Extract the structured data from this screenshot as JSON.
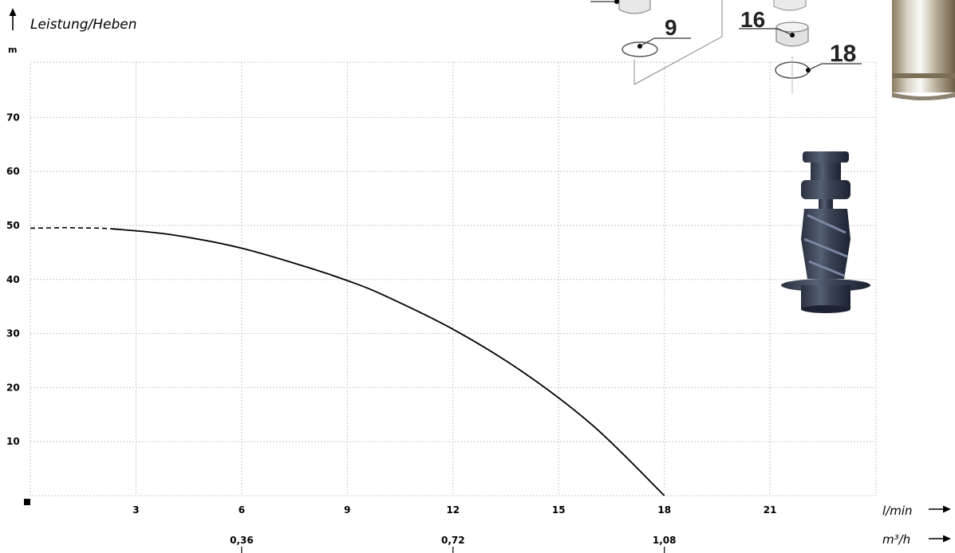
{
  "chart_data": {
    "type": "line",
    "title": "Leistung/Heben",
    "ylabel": "m",
    "xlabel": "l/min",
    "x2label": "m³/h",
    "xlim": [
      0,
      24
    ],
    "ylim": [
      0,
      75
    ],
    "yticks": [
      10,
      20,
      30,
      40,
      50,
      60,
      70
    ],
    "xticks": [
      3,
      6,
      9,
      12,
      15,
      18,
      21
    ],
    "x2ticks": [
      {
        "x": 6,
        "label": "0,36"
      },
      {
        "x": 12,
        "label": "0,72"
      },
      {
        "x": 18,
        "label": "1,08"
      }
    ],
    "grid": true,
    "series": [
      {
        "color": "#000000",
        "dashed_segment": [
          [
            0,
            49.5
          ],
          [
            1.0,
            49.6
          ],
          [
            2.0,
            49.5
          ],
          [
            2.3,
            49.4
          ]
        ],
        "points": [
          [
            2.3,
            49.4
          ],
          [
            4,
            48.3
          ],
          [
            6,
            45.8
          ],
          [
            8,
            42.0
          ],
          [
            9,
            39.8
          ],
          [
            10,
            37.2
          ],
          [
            12,
            30.8
          ],
          [
            14,
            22.8
          ],
          [
            16,
            12.8
          ],
          [
            18,
            0
          ]
        ]
      }
    ]
  },
  "illustrations": {
    "parts_callouts": [
      "9",
      "16",
      "18"
    ],
    "pump_image": "pump-housing-cylinder",
    "impeller_image": "screw-impeller"
  }
}
